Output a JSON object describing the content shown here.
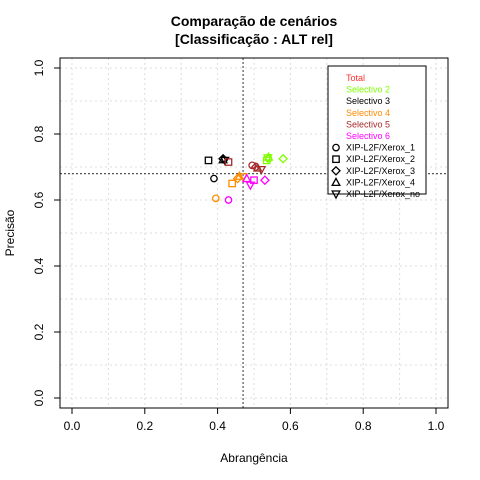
{
  "chart_data": {
    "type": "scatter",
    "title": "Comparação de cenários",
    "subtitle": "[Classificação : ALT rel]",
    "xlabel": "Abrangência",
    "ylabel": "Precisão",
    "xlim": [
      0,
      1
    ],
    "ylim": [
      0,
      1
    ],
    "xticks": [
      0.0,
      0.2,
      0.4,
      0.6,
      0.8,
      1.0
    ],
    "yticks": [
      0.0,
      0.2,
      0.4,
      0.6,
      0.8,
      1.0
    ],
    "xtick_labels": [
      "0.0",
      "0.2",
      "0.4",
      "0.6",
      "0.8",
      "1.0"
    ],
    "ytick_labels": [
      "0.0",
      "0.2",
      "0.4",
      "0.6",
      "0.8",
      "1.0"
    ],
    "grid": true,
    "reference_lines": {
      "x": 0.47,
      "y": 0.68
    },
    "legend_position": "top-right",
    "series": [
      {
        "name": "Total",
        "color": "#ff3030",
        "points": []
      },
      {
        "name": "Selectivo 2",
        "color": "#7fff00",
        "points": [
          {
            "x": 0.58,
            "y": 0.725,
            "shape": "diamond"
          },
          {
            "x": 0.54,
            "y": 0.73,
            "shape": "up-triangle"
          },
          {
            "x": 0.54,
            "y": 0.725,
            "shape": "circle"
          },
          {
            "x": 0.535,
            "y": 0.72,
            "shape": "square"
          },
          {
            "x": 0.538,
            "y": 0.728,
            "shape": "down-triangle"
          }
        ]
      },
      {
        "name": "Selectivo 3",
        "color": "#000000",
        "points": [
          {
            "x": 0.39,
            "y": 0.665,
            "shape": "circle"
          },
          {
            "x": 0.375,
            "y": 0.72,
            "shape": "square"
          },
          {
            "x": 0.415,
            "y": 0.725,
            "shape": "diamond"
          },
          {
            "x": 0.415,
            "y": 0.722,
            "shape": "up-triangle"
          },
          {
            "x": 0.42,
            "y": 0.72,
            "shape": "down-triangle"
          }
        ]
      },
      {
        "name": "Selectivo 4",
        "color": "#ff8c00",
        "points": [
          {
            "x": 0.395,
            "y": 0.605,
            "shape": "circle"
          },
          {
            "x": 0.44,
            "y": 0.65,
            "shape": "square"
          },
          {
            "x": 0.455,
            "y": 0.665,
            "shape": "diamond"
          },
          {
            "x": 0.46,
            "y": 0.672,
            "shape": "up-triangle"
          },
          {
            "x": 0.47,
            "y": 0.67,
            "shape": "down-triangle"
          }
        ]
      },
      {
        "name": "Selectivo 5",
        "color": "#a52a2a",
        "points": [
          {
            "x": 0.495,
            "y": 0.705,
            "shape": "circle"
          },
          {
            "x": 0.43,
            "y": 0.715,
            "shape": "square"
          },
          {
            "x": 0.505,
            "y": 0.7,
            "shape": "diamond"
          },
          {
            "x": 0.51,
            "y": 0.697,
            "shape": "up-triangle"
          },
          {
            "x": 0.52,
            "y": 0.692,
            "shape": "down-triangle"
          }
        ]
      },
      {
        "name": "Selectivo 6",
        "color": "#ff00ff",
        "points": [
          {
            "x": 0.43,
            "y": 0.6,
            "shape": "circle"
          },
          {
            "x": 0.5,
            "y": 0.66,
            "shape": "square"
          },
          {
            "x": 0.53,
            "y": 0.66,
            "shape": "diamond"
          },
          {
            "x": 0.48,
            "y": 0.665,
            "shape": "up-triangle"
          },
          {
            "x": 0.49,
            "y": 0.645,
            "shape": "down-triangle"
          }
        ]
      }
    ],
    "shape_legend": [
      {
        "label": "XIP-L2F/Xerox_1",
        "shape": "circle"
      },
      {
        "label": "XIP-L2F/Xerox_2",
        "shape": "square"
      },
      {
        "label": "XIP-L2F/Xerox_3",
        "shape": "diamond"
      },
      {
        "label": "XIP-L2F/Xerox_4",
        "shape": "up-triangle"
      },
      {
        "label": "XIP-L2F/Xerox_no",
        "shape": "down-triangle"
      }
    ]
  }
}
